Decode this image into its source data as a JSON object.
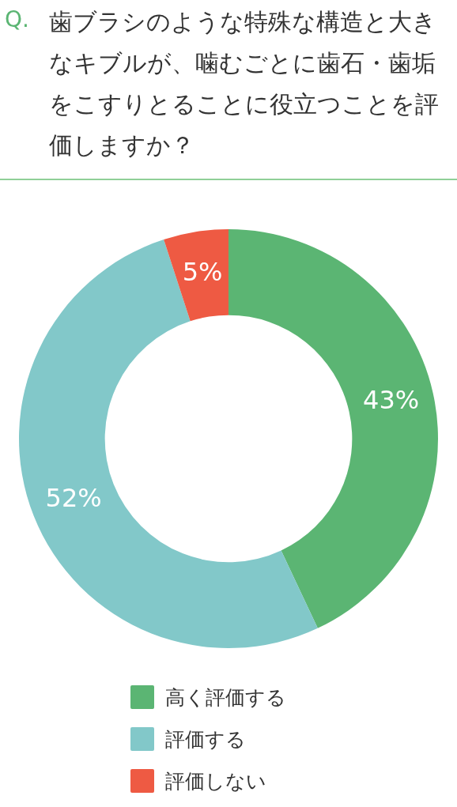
{
  "chart_data": {
    "type": "donut",
    "title": "歯ブラシのような特殊な構造と大きなキブルが、噛むごとに歯石・歯垢をこすりとることに役立つことを評価しますか？",
    "annotations": [
      "Q."
    ],
    "categories": [
      "高く評価する",
      "評価する",
      "評価しない"
    ],
    "values": [
      43,
      52,
      5
    ],
    "colors": [
      "#5bb573",
      "#82c8c9",
      "#ee5a43"
    ],
    "value_labels": [
      "43%",
      "52%",
      "5%"
    ],
    "legend": "bottom"
  }
}
